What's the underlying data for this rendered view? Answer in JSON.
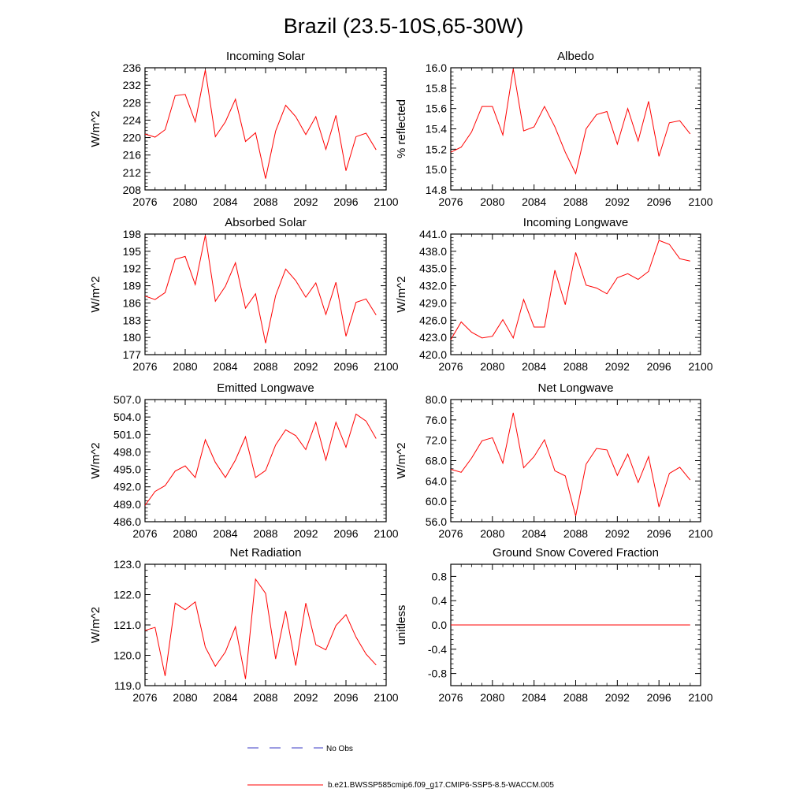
{
  "figure": {
    "title": "Brazil (23.5-10S,65-30W)",
    "legend": [
      {
        "label": "No Obs",
        "style": "dashed",
        "color": "#3b3bc4"
      },
      {
        "label": "b.e21.BWSSP585cmip6.f09_g17.CMIP6-SSP5-8.5-WACCM.005",
        "style": "solid",
        "color": "#ff0000"
      }
    ]
  },
  "chart_data": [
    {
      "type": "line",
      "title": "Incoming Solar",
      "ylabel": "W/m^2",
      "xlim": [
        2076,
        2100
      ],
      "ylim": [
        208,
        236
      ],
      "xticks": [
        2076,
        2080,
        2084,
        2088,
        2092,
        2096,
        2100
      ],
      "yticks": [
        208,
        212,
        216,
        220,
        224,
        228,
        232,
        236
      ],
      "ytick_labels": [
        "208",
        "212",
        "216",
        "220",
        "224",
        "228",
        "232",
        "236"
      ],
      "x": [
        2076,
        2077,
        2078,
        2079,
        2080,
        2081,
        2082,
        2083,
        2084,
        2085,
        2086,
        2087,
        2088,
        2089,
        2090,
        2091,
        2092,
        2093,
        2094,
        2095,
        2096,
        2097,
        2098,
        2099
      ],
      "values": [
        220.8,
        220.1,
        221.8,
        229.6,
        229.9,
        223.6,
        235.5,
        220.2,
        223.6,
        228.8,
        219.1,
        221.1,
        210.6,
        221.5,
        227.4,
        224.8,
        220.7,
        224.8,
        217.3,
        225.1,
        212.4,
        220.2,
        221.0,
        217.2
      ],
      "color": "#ff0000"
    },
    {
      "type": "line",
      "title": "Albedo",
      "ylabel": "% reflected",
      "xlim": [
        2076,
        2100
      ],
      "ylim": [
        14.8,
        16.0
      ],
      "xticks": [
        2076,
        2080,
        2084,
        2088,
        2092,
        2096,
        2100
      ],
      "yticks": [
        14.8,
        15.0,
        15.2,
        15.4,
        15.6,
        15.8,
        16.0
      ],
      "ytick_labels": [
        "14.8",
        "15.0",
        "15.2",
        "15.4",
        "15.6",
        "15.8",
        "16.0"
      ],
      "x": [
        2076,
        2077,
        2078,
        2079,
        2080,
        2081,
        2082,
        2083,
        2084,
        2085,
        2086,
        2087,
        2088,
        2089,
        2090,
        2091,
        2092,
        2093,
        2094,
        2095,
        2096,
        2097,
        2098,
        2099
      ],
      "values": [
        15.17,
        15.22,
        15.37,
        15.62,
        15.62,
        15.34,
        15.99,
        15.38,
        15.42,
        15.62,
        15.42,
        15.17,
        14.96,
        15.4,
        15.54,
        15.57,
        15.25,
        15.6,
        15.28,
        15.67,
        15.13,
        15.46,
        15.48,
        15.35
      ],
      "color": "#ff0000"
    },
    {
      "type": "line",
      "title": "Absorbed Solar",
      "ylabel": "W/m^2",
      "xlim": [
        2076,
        2100
      ],
      "ylim": [
        177,
        198
      ],
      "xticks": [
        2076,
        2080,
        2084,
        2088,
        2092,
        2096,
        2100
      ],
      "yticks": [
        177,
        180,
        183,
        186,
        189,
        192,
        195,
        198
      ],
      "ytick_labels": [
        "177",
        "180",
        "183",
        "186",
        "189",
        "192",
        "195",
        "198"
      ],
      "x": [
        2076,
        2077,
        2078,
        2079,
        2080,
        2081,
        2082,
        2083,
        2084,
        2085,
        2086,
        2087,
        2088,
        2089,
        2090,
        2091,
        2092,
        2093,
        2094,
        2095,
        2096,
        2097,
        2098,
        2099
      ],
      "values": [
        187.2,
        186.6,
        187.8,
        193.6,
        194.1,
        189.2,
        197.8,
        186.3,
        188.9,
        193.0,
        185.1,
        187.6,
        179.0,
        187.3,
        191.9,
        189.9,
        187.0,
        189.5,
        184.0,
        189.6,
        180.2,
        186.1,
        186.7,
        183.9
      ],
      "color": "#ff0000"
    },
    {
      "type": "line",
      "title": "Incoming Longwave",
      "ylabel": "W/m^2",
      "xlim": [
        2076,
        2100
      ],
      "ylim": [
        420.0,
        441.0
      ],
      "xticks": [
        2076,
        2080,
        2084,
        2088,
        2092,
        2096,
        2100
      ],
      "yticks": [
        420.0,
        423.0,
        426.0,
        429.0,
        432.0,
        435.0,
        438.0,
        441.0
      ],
      "ytick_labels": [
        "420.0",
        "423.0",
        "426.0",
        "429.0",
        "432.0",
        "435.0",
        "438.0",
        "441.0"
      ],
      "x": [
        2076,
        2077,
        2078,
        2079,
        2080,
        2081,
        2082,
        2083,
        2084,
        2085,
        2086,
        2087,
        2088,
        2089,
        2090,
        2091,
        2092,
        2093,
        2094,
        2095,
        2096,
        2097,
        2098,
        2099
      ],
      "values": [
        422.6,
        425.7,
        423.9,
        422.9,
        423.2,
        426.1,
        422.9,
        429.6,
        424.8,
        424.8,
        434.7,
        428.7,
        437.8,
        432.1,
        431.6,
        430.6,
        433.4,
        434.1,
        433.1,
        434.5,
        439.9,
        439.2,
        436.7,
        436.3
      ],
      "color": "#ff0000"
    },
    {
      "type": "line",
      "title": "Emitted Longwave",
      "ylabel": "W/m^2",
      "xlim": [
        2076,
        2100
      ],
      "ylim": [
        486.0,
        507.0
      ],
      "xticks": [
        2076,
        2080,
        2084,
        2088,
        2092,
        2096,
        2100
      ],
      "yticks": [
        486.0,
        489.0,
        492.0,
        495.0,
        498.0,
        501.0,
        504.0,
        507.0
      ],
      "ytick_labels": [
        "486.0",
        "489.0",
        "492.0",
        "495.0",
        "498.0",
        "501.0",
        "504.0",
        "507.0"
      ],
      "x": [
        2076,
        2077,
        2078,
        2079,
        2080,
        2081,
        2082,
        2083,
        2084,
        2085,
        2086,
        2087,
        2088,
        2089,
        2090,
        2091,
        2092,
        2093,
        2094,
        2095,
        2096,
        2097,
        2098,
        2099
      ],
      "values": [
        488.8,
        491.2,
        492.2,
        494.7,
        495.6,
        493.6,
        500.1,
        496.2,
        493.6,
        496.6,
        500.6,
        493.6,
        494.8,
        499.2,
        501.8,
        500.8,
        498.4,
        503.1,
        496.6,
        503.1,
        498.8,
        504.5,
        503.3,
        500.3
      ],
      "color": "#ff0000"
    },
    {
      "type": "line",
      "title": "Net Longwave",
      "ylabel": "W/m^2",
      "xlim": [
        2076,
        2100
      ],
      "ylim": [
        56.0,
        80.0
      ],
      "xticks": [
        2076,
        2080,
        2084,
        2088,
        2092,
        2096,
        2100
      ],
      "yticks": [
        56.0,
        60.0,
        64.0,
        68.0,
        72.0,
        76.0,
        80.0
      ],
      "ytick_labels": [
        "56.0",
        "60.0",
        "64.0",
        "68.0",
        "72.0",
        "76.0",
        "80.0"
      ],
      "x": [
        2076,
        2077,
        2078,
        2079,
        2080,
        2081,
        2082,
        2083,
        2084,
        2085,
        2086,
        2087,
        2088,
        2089,
        2090,
        2091,
        2092,
        2093,
        2094,
        2095,
        2096,
        2097,
        2098,
        2099
      ],
      "values": [
        66.3,
        65.7,
        68.5,
        71.9,
        72.5,
        67.5,
        77.4,
        66.6,
        68.8,
        72.1,
        66.0,
        65.0,
        57.1,
        67.3,
        70.4,
        70.1,
        65.1,
        69.3,
        63.7,
        68.8,
        58.9,
        65.5,
        66.7,
        64.2
      ],
      "color": "#ff0000"
    },
    {
      "type": "line",
      "title": "Net Radiation",
      "ylabel": "W/m^2",
      "xlim": [
        2076,
        2100
      ],
      "ylim": [
        119.0,
        123.0
      ],
      "xticks": [
        2076,
        2080,
        2084,
        2088,
        2092,
        2096,
        2100
      ],
      "yticks": [
        119.0,
        120.0,
        121.0,
        122.0,
        123.0
      ],
      "ytick_labels": [
        "119.0",
        "120.0",
        "121.0",
        "122.0",
        "123.0"
      ],
      "x": [
        2076,
        2077,
        2078,
        2079,
        2080,
        2081,
        2082,
        2083,
        2084,
        2085,
        2086,
        2087,
        2088,
        2089,
        2090,
        2091,
        2092,
        2093,
        2094,
        2095,
        2096,
        2097,
        2098,
        2099
      ],
      "values": [
        120.82,
        120.92,
        119.32,
        121.72,
        121.5,
        121.76,
        120.27,
        119.64,
        120.11,
        120.94,
        119.22,
        122.51,
        122.04,
        119.88,
        121.46,
        119.66,
        121.72,
        120.35,
        120.18,
        120.98,
        121.34,
        120.6,
        120.04,
        119.68
      ],
      "color": "#ff0000"
    },
    {
      "type": "line",
      "title": "Ground Snow Covered Fraction",
      "ylabel": "unitless",
      "xlim": [
        2076,
        2100
      ],
      "ylim": [
        -1.0,
        1.0
      ],
      "xticks": [
        2076,
        2080,
        2084,
        2088,
        2092,
        2096,
        2100
      ],
      "yticks": [
        -0.8,
        -0.4,
        0.0,
        0.4,
        0.8
      ],
      "ytick_labels": [
        "-0.8",
        "-0.4",
        "0.0",
        "0.4",
        "0.8"
      ],
      "x": [
        2076,
        2077,
        2078,
        2079,
        2080,
        2081,
        2082,
        2083,
        2084,
        2085,
        2086,
        2087,
        2088,
        2089,
        2090,
        2091,
        2092,
        2093,
        2094,
        2095,
        2096,
        2097,
        2098,
        2099
      ],
      "values": [
        0,
        0,
        0,
        0,
        0,
        0,
        0,
        0,
        0,
        0,
        0,
        0,
        0,
        0,
        0,
        0,
        0,
        0,
        0,
        0,
        0,
        0,
        0,
        0
      ],
      "color": "#ff0000"
    }
  ]
}
